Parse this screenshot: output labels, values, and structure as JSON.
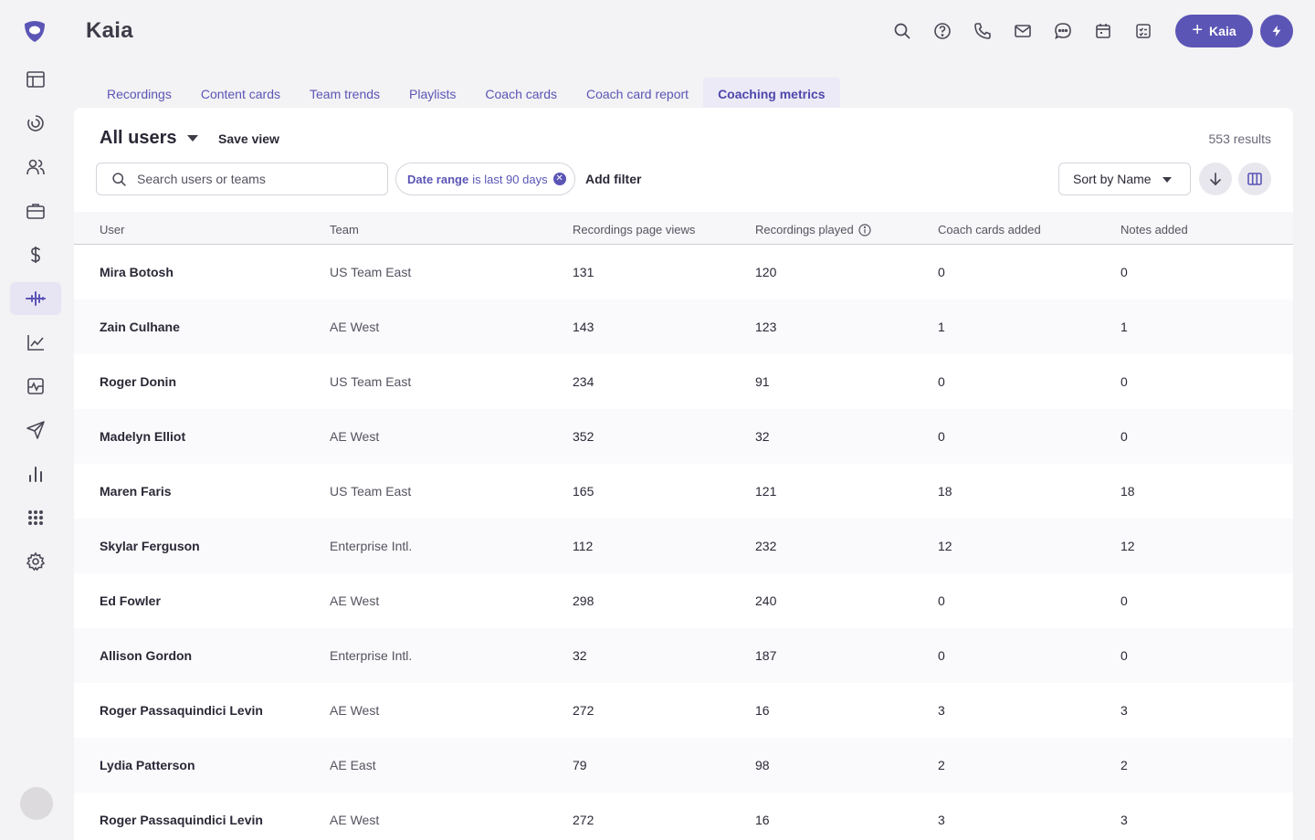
{
  "app": {
    "title": "Kaia"
  },
  "header": {
    "icons": [
      "search-icon",
      "help-icon",
      "phone-icon",
      "mail-icon",
      "chat-icon",
      "calendar-icon",
      "tasks-icon"
    ],
    "new_button": {
      "label": "Kaia"
    }
  },
  "sidebar": {
    "items": [
      {
        "name": "layout-icon"
      },
      {
        "name": "dial-icon"
      },
      {
        "name": "people-icon"
      },
      {
        "name": "briefcase-icon"
      },
      {
        "name": "dollar-icon"
      },
      {
        "name": "waveform-icon",
        "active": true
      },
      {
        "name": "trend-icon"
      },
      {
        "name": "activity-icon"
      },
      {
        "name": "send-icon"
      },
      {
        "name": "bar-chart-icon"
      },
      {
        "name": "apps-grid-icon"
      },
      {
        "name": "gear-icon"
      }
    ]
  },
  "tabs": [
    {
      "label": "Recordings"
    },
    {
      "label": "Content cards"
    },
    {
      "label": "Team trends"
    },
    {
      "label": "Playlists"
    },
    {
      "label": "Coach cards"
    },
    {
      "label": "Coach card report"
    },
    {
      "label": "Coaching metrics",
      "active": true
    }
  ],
  "view": {
    "title": "All users",
    "save_label": "Save view",
    "results": "553 results"
  },
  "search": {
    "placeholder": "Search users or teams",
    "value": ""
  },
  "filter_chip": {
    "field": "Date range",
    "text": "is last 90 days"
  },
  "add_filter": "Add filter",
  "sort": {
    "label": "Sort by Name"
  },
  "table": {
    "columns": [
      "User",
      "Team",
      "Recordings page views",
      "Recordings played",
      "Coach cards added",
      "Notes added"
    ],
    "rows": [
      [
        "Mira Botosh",
        "US Team East",
        "131",
        "120",
        "0",
        "0"
      ],
      [
        "Zain Culhane",
        "AE West",
        "143",
        "123",
        "1",
        "1"
      ],
      [
        "Roger Donin",
        "US Team East",
        "234",
        "91",
        "0",
        "0"
      ],
      [
        "Madelyn Elliot",
        "AE West",
        "352",
        "32",
        "0",
        "0"
      ],
      [
        "Maren Faris",
        "US Team East",
        "165",
        "121",
        "18",
        "18"
      ],
      [
        "Skylar Ferguson",
        "Enterprise Intl.",
        "112",
        "232",
        "12",
        "12"
      ],
      [
        "Ed Fowler",
        "AE West",
        "298",
        "240",
        "0",
        "0"
      ],
      [
        "Allison Gordon",
        "Enterprise Intl.",
        "32",
        "187",
        "0",
        "0"
      ],
      [
        "Roger Passaquindici Levin",
        "AE West",
        "272",
        "16",
        "3",
        "3"
      ],
      [
        "Lydia Patterson",
        "AE East",
        "79",
        "98",
        "2",
        "2"
      ],
      [
        "Roger Passaquindici Levin",
        "AE West",
        "272",
        "16",
        "3",
        "3"
      ]
    ]
  },
  "colors": {
    "accent": "#5b55b6",
    "tab_active_bg": "#eceaf6"
  }
}
